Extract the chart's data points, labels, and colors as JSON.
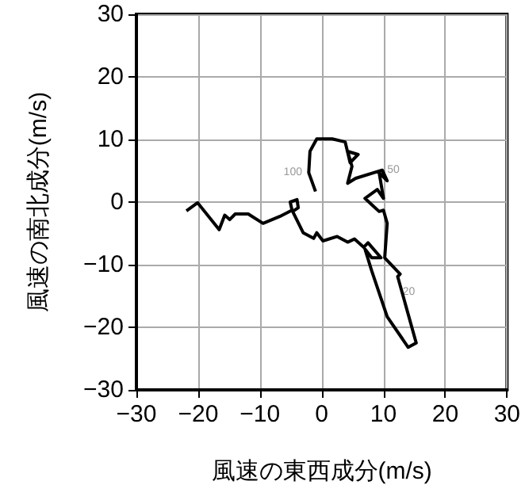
{
  "chart_data": {
    "type": "line",
    "xlabel": "風速の東西成分(m/s)",
    "ylabel": "風速の南北成分(m/s)",
    "xlim": [
      -30,
      30
    ],
    "xticks": [
      -30,
      -20,
      -10,
      0,
      10,
      20,
      30
    ],
    "ylim": [
      -30,
      30
    ],
    "yticks": [
      -30,
      -20,
      -10,
      0,
      10,
      20,
      30
    ],
    "grid": true,
    "marker": "none",
    "line_style": "solid",
    "series": [
      {
        "color": "#000000",
        "x": [
          -21.9,
          -20.1,
          -16.6,
          -15.7,
          -14.9,
          -14.0,
          -11.9,
          -9.5,
          -6.8,
          -4.8,
          -5.1,
          -4.0,
          -3.8,
          -4.7,
          -3.0,
          -1.3,
          -0.8,
          0.2,
          2.5,
          4.2,
          5.3,
          6.8,
          7.5,
          9.6,
          8.1,
          7.0,
          8.1,
          10.6,
          14.0,
          15.3,
          12.3,
          12.7,
          10.2,
          10.6,
          10.0,
          9.3,
          8.2,
          7.0,
          9.0,
          10.0,
          9.3,
          10.6,
          9.8,
          5.5,
          4.2,
          4.9,
          4.2,
          5.9,
          4.6,
          3.8,
          1.7,
          -0.8,
          -1.9,
          -2.1,
          -1.0
        ],
        "values": [
          -1.4,
          -0.1,
          -4.4,
          -2.1,
          -2.8,
          -1.9,
          -1.9,
          -3.4,
          -2.3,
          -1.3,
          0.0,
          0.4,
          -0.9,
          -1.5,
          -4.9,
          -5.8,
          -4.9,
          -6.2,
          -5.5,
          -6.4,
          -5.9,
          -7.2,
          -6.5,
          -8.9,
          -8.9,
          -7.5,
          -11.0,
          -18.3,
          -23.2,
          -22.5,
          -11.9,
          -11.5,
          -8.9,
          -3.4,
          -1.3,
          -1.5,
          -0.5,
          0.6,
          2.0,
          0.6,
          4.7,
          3.4,
          5.1,
          3.8,
          3.0,
          5.7,
          8.1,
          7.6,
          6.3,
          9.6,
          10.1,
          10.1,
          8.1,
          4.7,
          1.7
        ]
      }
    ],
    "annotations": [
      {
        "text": "100",
        "x": -2.1,
        "y": 4.7
      },
      {
        "text": "50",
        "x": 9.8,
        "y": 5.1
      },
      {
        "text": "20",
        "x": 12.3,
        "y": -11.9
      }
    ]
  }
}
